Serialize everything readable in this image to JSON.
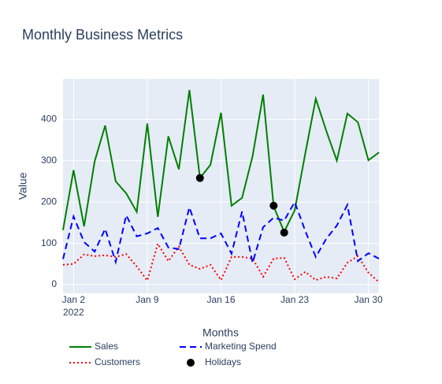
{
  "chart_data": {
    "type": "line",
    "title": "Monthly Business Metrics",
    "x_label": "Months",
    "y_label": "Value",
    "x": [
      "2022-01-01",
      "2022-01-02",
      "2022-01-03",
      "2022-01-04",
      "2022-01-05",
      "2022-01-06",
      "2022-01-07",
      "2022-01-08",
      "2022-01-09",
      "2022-01-10",
      "2022-01-11",
      "2022-01-12",
      "2022-01-13",
      "2022-01-14",
      "2022-01-15",
      "2022-01-16",
      "2022-01-17",
      "2022-01-18",
      "2022-01-19",
      "2022-01-20",
      "2022-01-21",
      "2022-01-22",
      "2022-01-23",
      "2022-01-24",
      "2022-01-25",
      "2022-01-26",
      "2022-01-27",
      "2022-01-28",
      "2022-01-29",
      "2022-01-30",
      "2022-01-31"
    ],
    "series": [
      {
        "name": "Sales",
        "color": "#008000",
        "dash": "solid",
        "values": [
          132,
          277,
          141,
          298,
          385,
          250,
          221,
          176,
          390,
          164,
          359,
          279,
          471,
          258,
          290,
          416,
          191,
          210,
          311,
          460,
          189,
          128,
          180,
          317,
          450,
          372,
          300,
          414,
          393,
          301,
          320
        ]
      },
      {
        "name": "Customers",
        "color": "#ff0000",
        "dash": "dot",
        "values": [
          48,
          50,
          73,
          69,
          71,
          67,
          74,
          44,
          10,
          99,
          57,
          92,
          48,
          38,
          48,
          11,
          67,
          67,
          63,
          19,
          63,
          65,
          13,
          31,
          11,
          19,
          15,
          53,
          69,
          29,
          6
        ]
      },
      {
        "name": "Marketing Spend",
        "color": "#0000ff",
        "dash": "dash",
        "values": [
          62,
          165,
          103,
          80,
          135,
          55,
          168,
          117,
          124,
          137,
          90,
          86,
          187,
          112,
          112,
          124,
          75,
          177,
          53,
          139,
          162,
          155,
          200,
          130,
          67,
          111,
          143,
          193,
          57,
          76,
          63
        ]
      }
    ],
    "markers": {
      "name": "Holidays",
      "color": "#000000",
      "x": [
        "2022-01-14",
        "2022-01-21",
        "2022-01-22"
      ],
      "values": [
        258,
        191,
        126
      ]
    },
    "xlim": [
      "2022-01-01",
      "2022-01-31"
    ],
    "xticks": [
      {
        "value": "2022-01-02",
        "label": "Jan 2"
      },
      {
        "value": "2022-01-09",
        "label": "Jan 9"
      },
      {
        "value": "2022-01-16",
        "label": "Jan 16"
      },
      {
        "value": "2022-01-23",
        "label": "Jan 23"
      },
      {
        "value": "2022-01-30",
        "label": "Jan 30"
      }
    ],
    "xtick_year": "2022",
    "ylim": [
      -21,
      498
    ],
    "yticks": [
      0,
      100,
      200,
      300,
      400
    ],
    "grid": true,
    "legend_position": "bottom"
  }
}
